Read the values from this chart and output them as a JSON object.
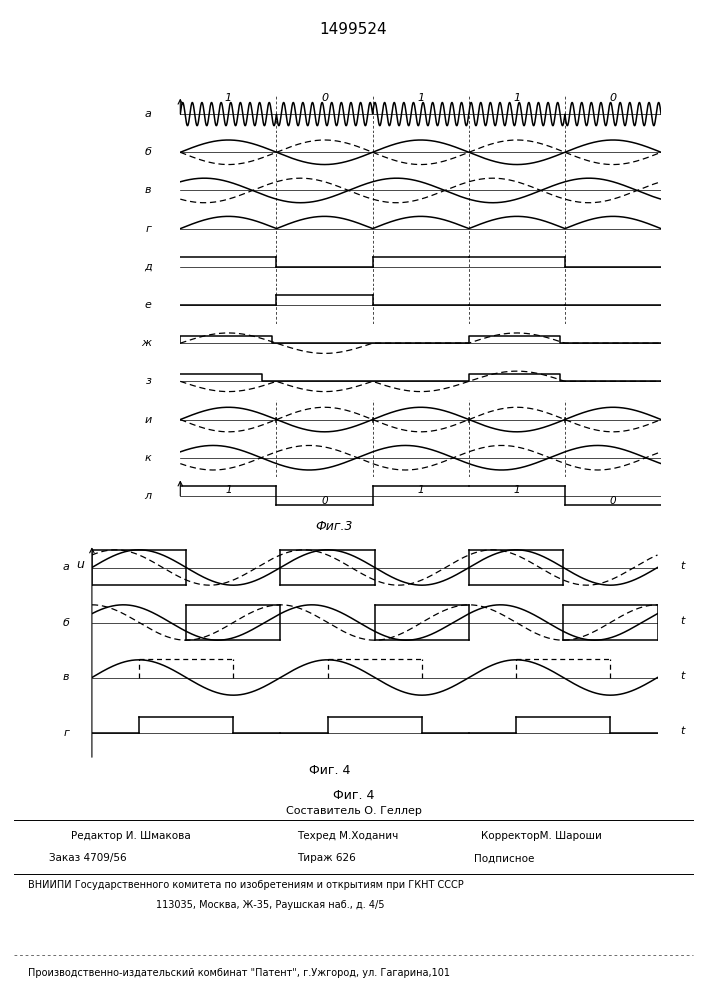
{
  "title": "1499524",
  "bg_color": "#ffffff",
  "fig3_label": "Фиг.3",
  "fig4_label": "Фиг. 4",
  "bits_fig3": [
    1,
    0,
    1,
    1,
    0
  ],
  "row_labels_fig3": [
    "а",
    "б",
    "в",
    "г",
    "д",
    "е",
    "ж",
    "з",
    "и",
    "к",
    "л"
  ],
  "row_labels_fig4": [
    "а",
    "б",
    "в",
    "г"
  ],
  "footer_fig4": "Фиг. 4",
  "footer_composer": "Составитель О. Геллер",
  "footer_editor": "Редактор И. Шмакова",
  "footer_techred": "Техред М.Ходанич",
  "footer_corrector": "КорректорМ. Шароши",
  "footer_order": "Заказ 4709/56",
  "footer_tirazh": "Тираж 626",
  "footer_podpisnoe": "Подписное",
  "footer_vniip": "ВНИИПИ Государственного комитета по изобретениям и открытиям при ГКНТ СССР",
  "footer_addr": "113035, Москва, Ж-35, Раушская наб., д. 4/5",
  "footer_patent": "Производственно-издательский комбинат \"Патент\", г.Ужгород, ул. Гагарина,101"
}
